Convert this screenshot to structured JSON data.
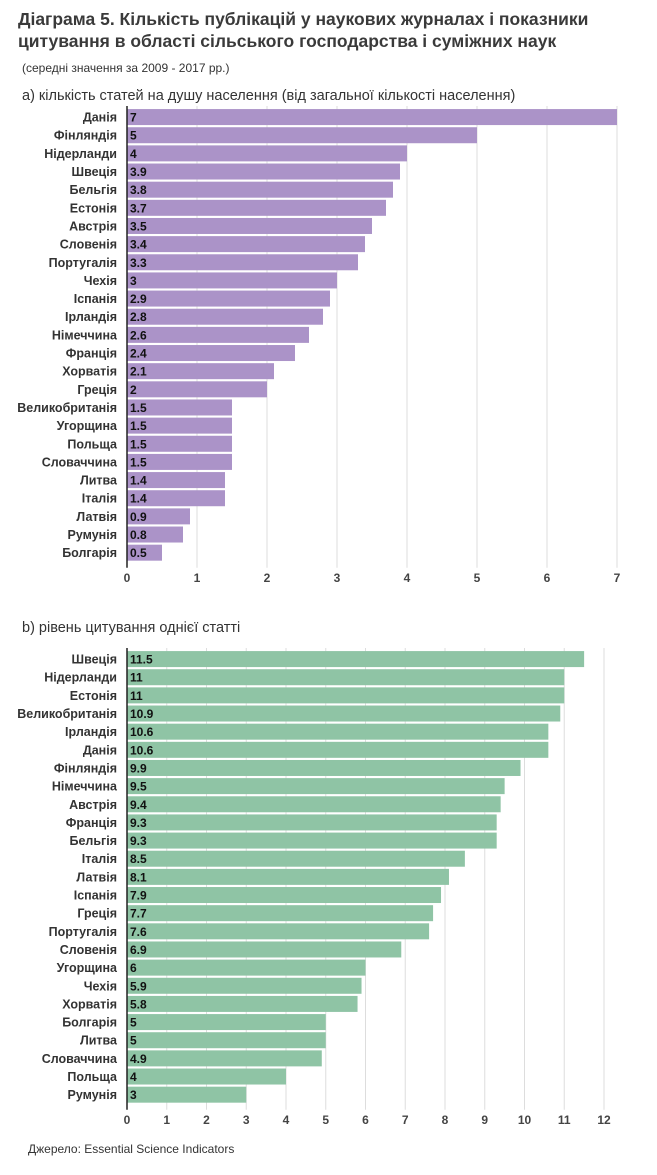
{
  "title": "Діаграма   5. Кількість публікацій у наукових журналах  і показники цитування в області сільського господарства і суміжних наук",
  "subtitle": "(середні значення за 2009 - 2017 рр.)",
  "source": "Джерело:   Essential Science Indicators",
  "chart_data": [
    {
      "type": "bar",
      "orientation": "horizontal",
      "title": "а) кількість статей на душу населення (від загальної кількості населення)",
      "categories": [
        "Данія",
        "Фінляндія",
        "Нідерланди",
        "Швеція",
        "Бельгія",
        "Естонія",
        "Австрія",
        "Словенія",
        "Португалія",
        "Чехія",
        "Іспанія",
        "Ірландія",
        "Німеччина",
        "Франція",
        "Хорватія",
        "Греція",
        "Великобританія",
        "Угорщина",
        "Польща",
        "Словаччина",
        "Литва",
        "Італія",
        "Латвія",
        "Румунія",
        "Болгарія"
      ],
      "values": [
        7,
        5,
        4,
        3.9,
        3.8,
        3.7,
        3.5,
        3.4,
        3.3,
        3,
        2.9,
        2.8,
        2.6,
        2.4,
        2.1,
        2,
        1.5,
        1.5,
        1.5,
        1.5,
        1.4,
        1.4,
        0.9,
        0.8,
        0.5
      ],
      "value_labels": [
        "7",
        "5",
        "4",
        "3.9",
        "3.8",
        "3.7",
        "3.5",
        "3.4",
        "3.3",
        "3",
        "2.9",
        "2.8",
        "2.6",
        "2.4",
        "2.1",
        "2",
        "1.5",
        "1.5",
        "1.5",
        "1.5",
        "1.4",
        "1.4",
        "0.9",
        "0.8",
        "0.5"
      ],
      "xlim": [
        0,
        7
      ],
      "ticks": [
        "0",
        "1",
        "2",
        "3",
        "4",
        "5",
        "6",
        "7"
      ],
      "color": "#ab93c8",
      "grid": true
    },
    {
      "type": "bar",
      "orientation": "horizontal",
      "title": "b) рівень цитування однієї статті",
      "categories": [
        "Швеція",
        "Нідерланди",
        "Естонія",
        "Великобританія",
        "Ірландія",
        "Данія",
        "Фінляндія",
        "Німеччина",
        "Австрія",
        "Франція",
        "Бельгія",
        "Італія",
        "Латвія",
        "Іспанія",
        "Греція",
        "Португалія",
        "Словенія",
        "Угорщина",
        "Чехія",
        "Хорватія",
        "Болгарія",
        "Литва",
        "Словаччина",
        "Польща",
        "Румунія"
      ],
      "values": [
        11.5,
        11,
        11,
        10.9,
        10.6,
        10.6,
        9.9,
        9.5,
        9.4,
        9.3,
        9.3,
        8.5,
        8.1,
        7.9,
        7.7,
        7.6,
        6.9,
        6,
        5.9,
        5.8,
        5,
        5,
        4.9,
        4,
        3
      ],
      "value_labels": [
        "11.5",
        "11",
        "11",
        "10.9",
        "10.6",
        "10.6",
        "9.9",
        "9.5",
        "9.4",
        "9.3",
        "9.3",
        "8.5",
        "8.1",
        "7.9",
        "7.7",
        "7.6",
        "6.9",
        "6",
        "5.9",
        "5.8",
        "5",
        "5",
        "4.9",
        "4",
        "3"
      ],
      "xlim": [
        0,
        12
      ],
      "ticks": [
        "0",
        "1",
        "2",
        "3",
        "4",
        "5",
        "6",
        "7",
        "8",
        "9",
        "10",
        "11",
        "12"
      ],
      "color": "#8fc4a5",
      "grid": true
    }
  ]
}
